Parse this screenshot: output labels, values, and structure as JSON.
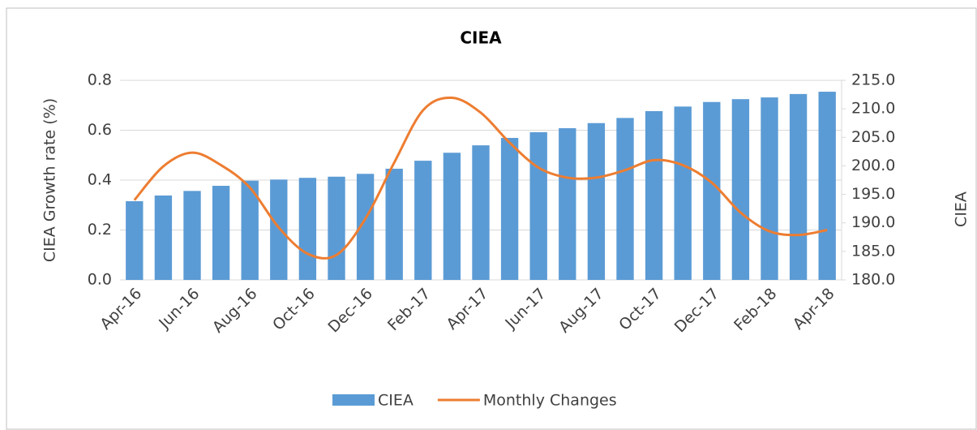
{
  "chart_data": {
    "type": "bar-line",
    "title": "CIEA",
    "y_label": "CIEA Growth rate (%)",
    "y2_label": "CIEA",
    "categories": [
      "Apr-16",
      null,
      "Jun-16",
      null,
      "Aug-16",
      null,
      "Oct-16",
      null,
      "Dec-16",
      null,
      "Feb-17",
      null,
      "Apr-17",
      null,
      "Jun-17",
      null,
      "Aug-17",
      null,
      "Oct-17",
      null,
      "Dec-17",
      null,
      "Feb-18",
      null,
      "Apr-18"
    ],
    "series": [
      {
        "name": "CIEA",
        "type": "bar",
        "axis": "y2",
        "color": "#5b9bd5",
        "values": [
          193.8,
          194.8,
          195.6,
          196.5,
          197.4,
          197.6,
          197.9,
          198.1,
          198.6,
          199.5,
          200.9,
          202.3,
          203.6,
          204.9,
          205.9,
          206.6,
          207.5,
          208.4,
          209.6,
          210.4,
          211.2,
          211.7,
          212.0,
          212.6,
          213.0
        ]
      },
      {
        "name": "Monthly Changes",
        "type": "line",
        "axis": "y",
        "color": "#ed7d31",
        "values": [
          0.32,
          0.455,
          0.51,
          0.46,
          0.37,
          0.21,
          0.105,
          0.1,
          0.245,
          0.47,
          0.68,
          0.73,
          0.67,
          0.55,
          0.45,
          0.41,
          0.41,
          0.44,
          0.48,
          0.46,
          0.39,
          0.27,
          0.195,
          0.18,
          0.2
        ]
      }
    ],
    "ylim": [
      0,
      0.8
    ],
    "yticks": [
      {
        "value": 0,
        "label": "0.0"
      },
      0.2,
      0.4,
      0.6,
      0.8
    ],
    "y2lim": [
      180,
      215
    ],
    "y2ticks": [
      {
        "value": 180,
        "label": "180.0"
      },
      {
        "value": 185,
        "label": "185.0"
      },
      {
        "value": 190,
        "label": "190.0"
      },
      {
        "value": 195,
        "label": "195.0"
      },
      {
        "value": 200,
        "label": "200.0"
      },
      {
        "value": 205,
        "label": "205.0"
      },
      {
        "value": 210,
        "label": "210.0"
      },
      {
        "value": 215,
        "label": "215.0"
      }
    ],
    "grid": true,
    "legend": "bottom"
  }
}
